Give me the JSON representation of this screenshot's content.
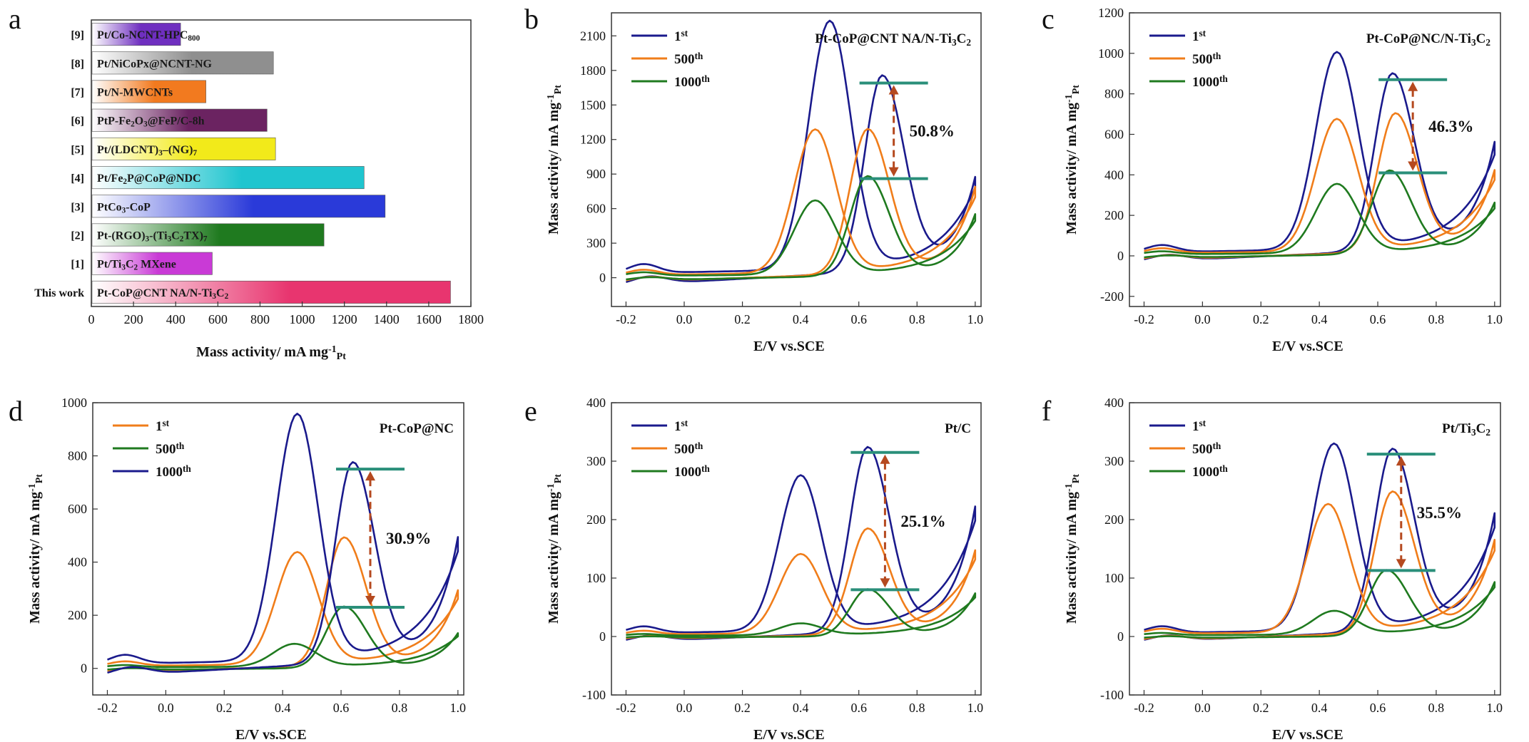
{
  "figure": {
    "panel_labels": [
      "a",
      "b",
      "c",
      "d",
      "e",
      "f"
    ]
  },
  "chart_data": [
    {
      "panel": "a",
      "type": "bar",
      "orientation": "horizontal",
      "categories": [
        "This work",
        "[1]",
        "[2]",
        "[3]",
        "[4]",
        "[5]",
        "[6]",
        "[7]",
        "[8]",
        "[9]"
      ],
      "bar_labels": [
        "Pt-CoP@CNT  NA/N-Ti3C2",
        "Pt/Ti3C2 MXene",
        "Pt-(RGO)3-(Ti3C2TX)7",
        "PtCo3-CoP",
        "Pt/Fe2P@CoP@NDC",
        "Pt/(LDCNT)3–(NG)7",
        "PtP-Fe2O3@FeP/C-8h",
        "Pt/N-MWCNTs",
        "Pt/NiCoPx@NCNT-NG",
        "Pt/Co-NCNT-HPC800"
      ],
      "values": [
        1700,
        570,
        1100,
        1390,
        1290,
        870,
        830,
        540,
        860,
        420
      ],
      "bar_colors": [
        "#e8356f",
        "#c93ad6",
        "#1f7a1f",
        "#2a3ad9",
        "#1fc5cf",
        "#f2ea1a",
        "#6b2361",
        "#f27a1f",
        "#8f8f8f",
        "#6f2fc0"
      ],
      "xlabel": "Mass activity/ mA mg",
      "xlabel_sup": "-1",
      "xlabel_sub": "Pt",
      "xlim": [
        0,
        1800
      ],
      "xticks": [
        0,
        200,
        400,
        600,
        800,
        1000,
        1200,
        1400,
        1600,
        1800
      ]
    },
    {
      "panel": "b",
      "type": "line",
      "title": "Pt-CoP@CNT  NA/N-Ti3C2",
      "xlabel": "E/V vs.SCE",
      "ylabel": "Mass activity/ mA mg",
      "ylabel_sup": "-1",
      "ylabel_sub": "Pt",
      "xlim": [
        -0.25,
        1.02
      ],
      "ylim": [
        -250,
        2300
      ],
      "xticks": [
        -0.2,
        0.0,
        0.2,
        0.4,
        0.6,
        0.8,
        1.0
      ],
      "yticks": [
        0,
        300,
        600,
        900,
        1200,
        1500,
        1800,
        2100
      ],
      "series": [
        {
          "name": "1st",
          "color": "#1a1a8c",
          "fwd_peak": [
            0.5,
            2150
          ],
          "rev_peak": [
            0.68,
            1690
          ],
          "end_value": 860
        },
        {
          "name": "500th",
          "color": "#f07d1a",
          "fwd_peak": [
            0.45,
            1240
          ],
          "rev_peak": [
            0.63,
            1250
          ],
          "end_value": 800
        },
        {
          "name": "1000th",
          "color": "#1f7a1f",
          "fwd_peak": [
            0.45,
            640
          ],
          "rev_peak": [
            0.63,
            860
          ],
          "end_value": 570
        }
      ],
      "retention": {
        "text": "50.8%",
        "top": 1690,
        "bottom": 860,
        "x": 0.72
      }
    },
    {
      "panel": "c",
      "type": "line",
      "title": "Pt-CoP@NC/N-Ti3C2",
      "xlabel": "E/V vs.SCE",
      "ylabel": "Mass activity/ mA mg",
      "ylabel_sup": "-1",
      "ylabel_sub": "Pt",
      "xlim": [
        -0.25,
        1.02
      ],
      "ylim": [
        -250,
        1200
      ],
      "xticks": [
        -0.2,
        0.0,
        0.2,
        0.4,
        0.6,
        0.8,
        1.0
      ],
      "yticks": [
        -200,
        0,
        200,
        400,
        600,
        800,
        1000,
        1200
      ],
      "series": [
        {
          "name": "1st",
          "color": "#1a1a8c",
          "fwd_peak": [
            0.46,
            970
          ],
          "rev_peak": [
            0.65,
            870
          ],
          "end_value": 570
        },
        {
          "name": "500th",
          "color": "#f07d1a",
          "fwd_peak": [
            0.46,
            650
          ],
          "rev_peak": [
            0.66,
            680
          ],
          "end_value": 430
        },
        {
          "name": "1000th",
          "color": "#1f7a1f",
          "fwd_peak": [
            0.46,
            340
          ],
          "rev_peak": [
            0.64,
            410
          ],
          "end_value": 270
        }
      ],
      "retention": {
        "text": "46.3%",
        "top": 870,
        "bottom": 410,
        "x": 0.72
      }
    },
    {
      "panel": "d",
      "type": "line",
      "title": "Pt-CoP@NC",
      "xlabel": "E/V vs.SCE",
      "ylabel": "Mass activity/ mA mg",
      "ylabel_sup": "-1",
      "ylabel_sub": "Pt",
      "xlim": [
        -0.25,
        1.02
      ],
      "ylim": [
        -100,
        1000
      ],
      "xticks": [
        -0.2,
        0.0,
        0.2,
        0.4,
        0.6,
        0.8,
        1.0
      ],
      "yticks": [
        0,
        200,
        400,
        600,
        800,
        1000
      ],
      "series": [
        {
          "name": "1st",
          "color": "#f07d1a",
          "fwd_peak": [
            0.45,
            420
          ],
          "rev_peak": [
            0.61,
            480
          ],
          "end_value": 300
        },
        {
          "name": "500th",
          "color": "#1f7a1f",
          "fwd_peak": [
            0.44,
            85
          ],
          "rev_peak": [
            0.61,
            230
          ],
          "end_value": 140
        },
        {
          "name": "1000th",
          "color": "#1a1a8c",
          "fwd_peak": [
            0.45,
            925
          ],
          "rev_peak": [
            0.64,
            750
          ],
          "end_value": 500
        }
      ],
      "retention": {
        "text": "30.9%",
        "top": 750,
        "bottom": 230,
        "x": 0.7
      }
    },
    {
      "panel": "e",
      "type": "line",
      "title": "Pt/C",
      "xlabel": "E/V vs.SCE",
      "ylabel": "Mass activity/ mA mg",
      "ylabel_sup": "-1",
      "ylabel_sub": "Pt",
      "xlim": [
        -0.25,
        1.02
      ],
      "ylim": [
        -100,
        400
      ],
      "xticks": [
        -0.2,
        0.0,
        0.2,
        0.4,
        0.6,
        0.8,
        1.0
      ],
      "yticks": [
        -100,
        0,
        100,
        200,
        300,
        400
      ],
      "series": [
        {
          "name": "1st",
          "color": "#1a1a8c",
          "fwd_peak": [
            0.4,
            265
          ],
          "rev_peak": [
            0.63,
            315
          ],
          "end_value": 230
        },
        {
          "name": "500th",
          "color": "#f07d1a",
          "fwd_peak": [
            0.4,
            135
          ],
          "rev_peak": [
            0.63,
            180
          ],
          "end_value": 155
        },
        {
          "name": "1000th",
          "color": "#1f7a1f",
          "fwd_peak": [
            0.4,
            20
          ],
          "rev_peak": [
            0.63,
            80
          ],
          "end_value": 80
        }
      ],
      "retention": {
        "text": "25.1%",
        "top": 315,
        "bottom": 80,
        "x": 0.69
      }
    },
    {
      "panel": "f",
      "type": "line",
      "title": "Pt/Ti3C2",
      "xlabel": "E/V vs.SCE",
      "ylabel": "Mass activity/ mA mg",
      "ylabel_sup": "-1",
      "ylabel_sub": "Pt",
      "xlim": [
        -0.25,
        1.02
      ],
      "ylim": [
        -100,
        400
      ],
      "xticks": [
        -0.2,
        0.0,
        0.2,
        0.4,
        0.6,
        0.8,
        1.0
      ],
      "yticks": [
        -100,
        0,
        100,
        200,
        300,
        400
      ],
      "series": [
        {
          "name": "1st",
          "color": "#1a1a8c",
          "fwd_peak": [
            0.45,
            318
          ],
          "rev_peak": [
            0.65,
            310
          ],
          "end_value": 215
        },
        {
          "name": "500th",
          "color": "#f07d1a",
          "fwd_peak": [
            0.43,
            218
          ],
          "rev_peak": [
            0.65,
            240
          ],
          "end_value": 170
        },
        {
          "name": "1000th",
          "color": "#1f7a1f",
          "fwd_peak": [
            0.45,
            40
          ],
          "rev_peak": [
            0.63,
            112
          ],
          "end_value": 100
        }
      ],
      "retention": {
        "text": "35.5%",
        "top": 312,
        "bottom": 113,
        "x": 0.68
      }
    }
  ]
}
